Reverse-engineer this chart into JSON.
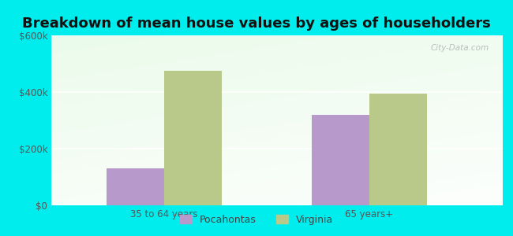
{
  "title": "Breakdown of mean house values by ages of householders",
  "categories": [
    "35 to 64 years",
    "65 years+"
  ],
  "series": {
    "Pocahontas": [
      130000,
      320000
    ],
    "Virginia": [
      475000,
      395000
    ]
  },
  "bar_colors": {
    "Pocahontas": "#b899cc",
    "Virginia": "#b8c98a"
  },
  "ylim": [
    0,
    600000
  ],
  "yticks": [
    0,
    200000,
    400000,
    600000
  ],
  "ytick_labels": [
    "$0",
    "$200k",
    "$400k",
    "$600k"
  ],
  "background_color": "#00eded",
  "title_fontsize": 13,
  "tick_fontsize": 8.5,
  "legend_fontsize": 9,
  "bar_width": 0.28
}
